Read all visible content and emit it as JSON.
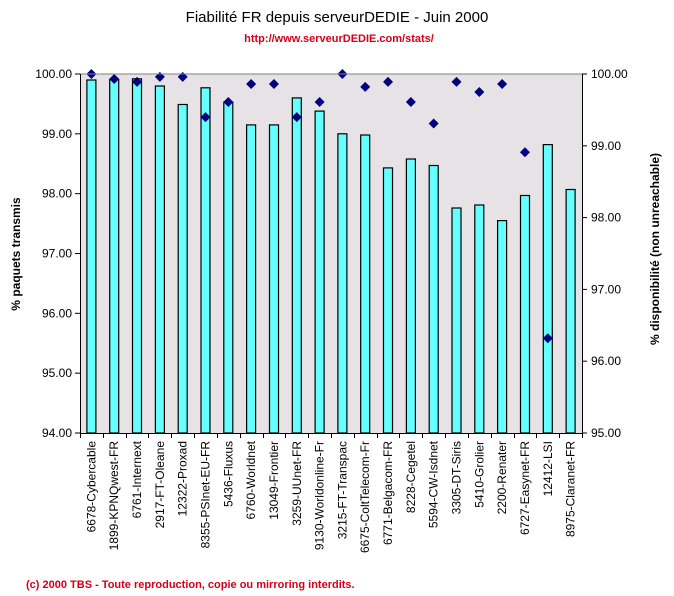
{
  "header": {
    "title": "Fiabilité FR depuis serveurDEDIE - Juin 2000",
    "url": "http://www.serveurDEDIE.com/stats/"
  },
  "footer": {
    "copyright": "(c) 2000 TBS - Toute reproduction, copie ou mirroring interdits."
  },
  "colors": {
    "bar_fill": "#66FFFF",
    "bar_stroke": "#000000",
    "marker": "#000080",
    "plot_bg": "#E6E2E6",
    "accent_red": "#D4001A"
  },
  "chart_data": {
    "type": "bar",
    "title": "Fiabilité FR depuis serveurDEDIE - Juin 2000",
    "subtitle": "http://www.serveurDEDIE.com/stats/",
    "xlabel": "",
    "ylabel": "% paquets transmis",
    "y2label": "% disponibilité (non unreachable)",
    "ylim": [
      94,
      100
    ],
    "y2lim": [
      95,
      100
    ],
    "yticks": [
      "94.00",
      "95.00",
      "96.00",
      "97.00",
      "98.00",
      "99.00",
      "100.00"
    ],
    "y2ticks": [
      "95.00",
      "96.00",
      "97.00",
      "98.00",
      "99.00",
      "100.00"
    ],
    "grid": false,
    "legend": "none",
    "categories": [
      "6678-Cybercable",
      "1899-KPNQwest-FR",
      "6761-Internext",
      "2917-FT-Oleane",
      "12322-Proxad",
      "8355-PSInet-EU-FR",
      "5436-Fluxus",
      "6760-Worldnet",
      "13049-Frontier",
      "3259-UUnet-FR",
      "9130-Worldonline-Fr",
      "3215-FT-Transpac",
      "6675-ColtTelecom-Fr",
      "6771-Belgacom-FR",
      "8228-Cegetel",
      "5594-CW-Isdnet",
      "3305-DT-Siris",
      "5410-Grolier",
      "2200-Renater",
      "6727-Easynet-FR",
      "12412-LSI",
      "8975-Claranet-FR"
    ],
    "series": [
      {
        "name": "% paquets transmis",
        "type": "bar",
        "axis": "left",
        "values": [
          99.9,
          99.91,
          99.92,
          99.8,
          99.49,
          99.77,
          99.53,
          99.15,
          99.15,
          99.6,
          99.38,
          99.0,
          98.98,
          98.43,
          98.58,
          98.47,
          97.76,
          97.81,
          97.55,
          97.97,
          98.82,
          98.07
        ]
      },
      {
        "name": "% disponibilité (non unreachable)",
        "type": "scatter",
        "axis": "right",
        "marker": "diamond",
        "values": [
          100.0,
          99.93,
          99.89,
          99.96,
          99.96,
          99.4,
          99.61,
          99.86,
          99.86,
          99.4,
          99.61,
          100.0,
          99.82,
          99.89,
          99.61,
          99.31,
          99.89,
          99.75,
          99.86,
          98.91,
          96.32,
          null
        ]
      }
    ]
  }
}
